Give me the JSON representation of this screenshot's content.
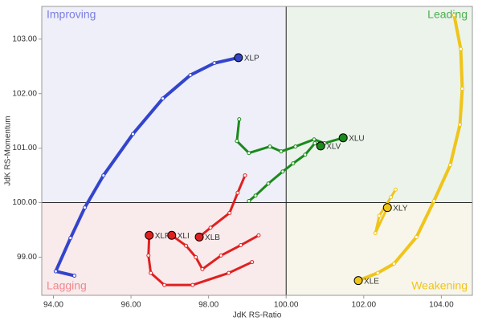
{
  "chart_data": {
    "type": "scatter",
    "x_label": "JdK RS-Ratio",
    "y_label": "JdK RS-Momentum",
    "xlim": [
      93.7,
      104.8
    ],
    "ylim": [
      98.3,
      103.6
    ],
    "xticks": [
      {
        "value": 94,
        "label": "94.00"
      },
      {
        "value": 96,
        "label": "96.00"
      },
      {
        "value": 98,
        "label": "98.00"
      },
      {
        "value": 100,
        "label": "100.00"
      },
      {
        "value": 102,
        "label": "102.00"
      },
      {
        "value": 104,
        "label": "104.00"
      }
    ],
    "yticks": [
      {
        "value": 99,
        "label": "99.00"
      },
      {
        "value": 100,
        "label": "100.00"
      },
      {
        "value": 101,
        "label": "101.00"
      },
      {
        "value": 102,
        "label": "102.00"
      },
      {
        "value": 103,
        "label": "103.00"
      }
    ],
    "center_x": 100,
    "center_y": 100,
    "quadrants": [
      {
        "label": "Improving",
        "corner": "top-left",
        "color": "#7b7fe0",
        "background": "#eeeff8"
      },
      {
        "label": "Leading",
        "corner": "top-right",
        "color": "#4caf50",
        "background": "#ebf3eb"
      },
      {
        "label": "Lagging",
        "corner": "bottom-left",
        "color": "#ee8890",
        "background": "#f9eaeb"
      },
      {
        "label": "Weakening",
        "corner": "bottom-right",
        "color": "#f0c419",
        "background": "#f8f6ea"
      }
    ],
    "series": [
      {
        "name": "XLP",
        "color": "#3344cc",
        "x": [
          94.54,
          94.06,
          94.44,
          94.81,
          95.29,
          96.05,
          96.82,
          97.53,
          98.15,
          98.77
        ],
        "values": [
          98.66,
          98.74,
          99.35,
          99.91,
          100.5,
          101.26,
          101.91,
          102.34,
          102.56,
          102.66
        ]
      },
      {
        "name": "XLU",
        "color": "#1a8a1a",
        "x": [
          98.79,
          98.73,
          99.04,
          99.58,
          99.87,
          100.24,
          100.72,
          100.99,
          101.47
        ],
        "values": [
          101.53,
          101.13,
          100.91,
          101.03,
          100.94,
          101.03,
          101.16,
          101.09,
          101.19
        ]
      },
      {
        "name": "XLV",
        "color": "#1a8a1a",
        "x": [
          99.04,
          99.21,
          99.54,
          99.91,
          100.18,
          100.49,
          100.74,
          100.89
        ],
        "values": [
          100.03,
          100.13,
          100.35,
          100.57,
          100.72,
          100.88,
          101.09,
          101.04
        ]
      },
      {
        "name": "XLB",
        "color": "#e02020",
        "x": [
          98.94,
          98.75,
          98.54,
          98.05,
          97.76
        ],
        "values": [
          100.5,
          100.18,
          99.81,
          99.54,
          99.37
        ]
      },
      {
        "name": "XLI",
        "color": "#e02020",
        "x": [
          99.29,
          98.83,
          98.32,
          97.84,
          97.67,
          97.42,
          97.05
        ],
        "values": [
          99.4,
          99.22,
          99.03,
          98.78,
          99.0,
          99.21,
          99.4
        ]
      },
      {
        "name": "XLF",
        "color": "#e02020",
        "x": [
          99.12,
          98.52,
          97.59,
          96.86,
          96.51,
          96.45,
          96.47
        ],
        "values": [
          98.91,
          98.71,
          98.49,
          98.49,
          98.71,
          99.03,
          99.4
        ]
      },
      {
        "name": "XLY",
        "color": "#f0c419",
        "x": [
          102.82,
          102.7,
          102.4,
          102.3,
          102.61
        ],
        "values": [
          100.24,
          100.1,
          99.76,
          99.44,
          99.91
        ]
      },
      {
        "name": "XLE",
        "color": "#f0c419",
        "x": [
          104.33,
          104.5,
          104.54,
          104.48,
          104.23,
          103.81,
          103.36,
          102.78,
          102.36,
          101.86
        ],
        "values": [
          103.44,
          102.82,
          102.09,
          101.43,
          100.69,
          100.03,
          99.37,
          98.88,
          98.71,
          98.57
        ]
      }
    ]
  }
}
